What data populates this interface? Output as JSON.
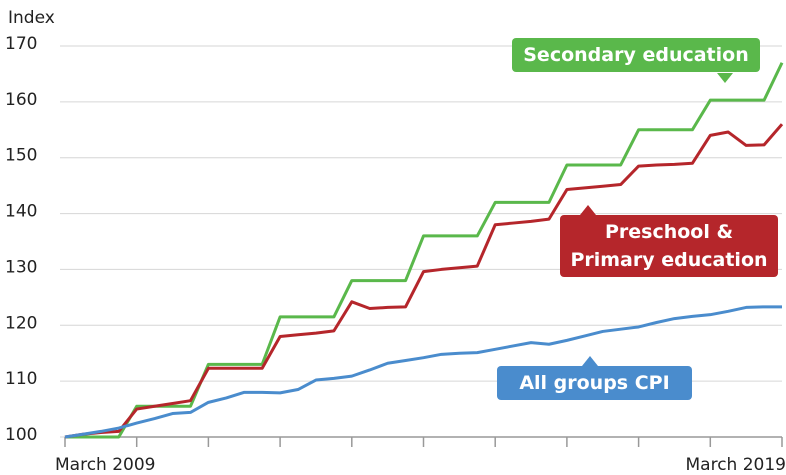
{
  "chart_data": {
    "type": "line",
    "y_label": "Index",
    "categories": [
      "March 2009",
      null,
      null,
      null,
      null,
      null,
      null,
      null,
      null,
      null,
      null,
      null,
      null,
      null,
      null,
      null,
      null,
      null,
      null,
      null,
      null,
      null,
      null,
      null,
      null,
      null,
      null,
      null,
      null,
      null,
      null,
      null,
      null,
      null,
      null,
      null,
      null,
      null,
      null,
      null,
      "March 2019"
    ],
    "ylim": [
      100,
      170
    ],
    "yticks": [
      100,
      110,
      120,
      130,
      140,
      150,
      160,
      170
    ],
    "grid": true,
    "series": [
      {
        "name": "Secondary education",
        "color": "#5ab84b",
        "values": [
          100,
          100,
          100,
          100,
          105.5,
          105.5,
          105.5,
          105.5,
          113,
          113,
          113,
          113,
          121.5,
          121.5,
          121.5,
          121.5,
          128,
          128,
          128,
          128,
          136,
          136,
          136,
          136,
          142,
          142,
          142,
          142,
          148.7,
          148.7,
          148.7,
          148.7,
          155,
          155,
          155,
          155,
          160.3,
          160.3,
          160.3,
          160.3,
          167
        ]
      },
      {
        "name": "Preschool & Primary education",
        "color": "#b5262b",
        "values": [
          100,
          100.5,
          100.8,
          101,
          105,
          105.5,
          106,
          106.5,
          112.3,
          112.3,
          112.3,
          112.3,
          118,
          118.3,
          118.6,
          119,
          124.2,
          123,
          123.2,
          123.3,
          129.6,
          130,
          130.3,
          130.6,
          138,
          138.3,
          138.6,
          139,
          144.3,
          144.6,
          144.9,
          145.2,
          148.5,
          148.7,
          148.8,
          149,
          154,
          154.6,
          152.2,
          152.3,
          156
        ]
      },
      {
        "name": "All groups CPI",
        "color": "#4a8ccd",
        "values": [
          100,
          100.5,
          101,
          101.6,
          102.5,
          103.3,
          104.2,
          104.4,
          106.2,
          107,
          108,
          108,
          107.9,
          108.5,
          110.2,
          110.5,
          110.9,
          112,
          113.2,
          113.7,
          114.2,
          114.8,
          115,
          115.1,
          115.7,
          116.3,
          116.9,
          116.6,
          117.3,
          118.1,
          118.9,
          119.3,
          119.7,
          120.5,
          121.2,
          121.6,
          121.9,
          122.5,
          123.2,
          123.3,
          123.3
        ]
      }
    ]
  }
}
